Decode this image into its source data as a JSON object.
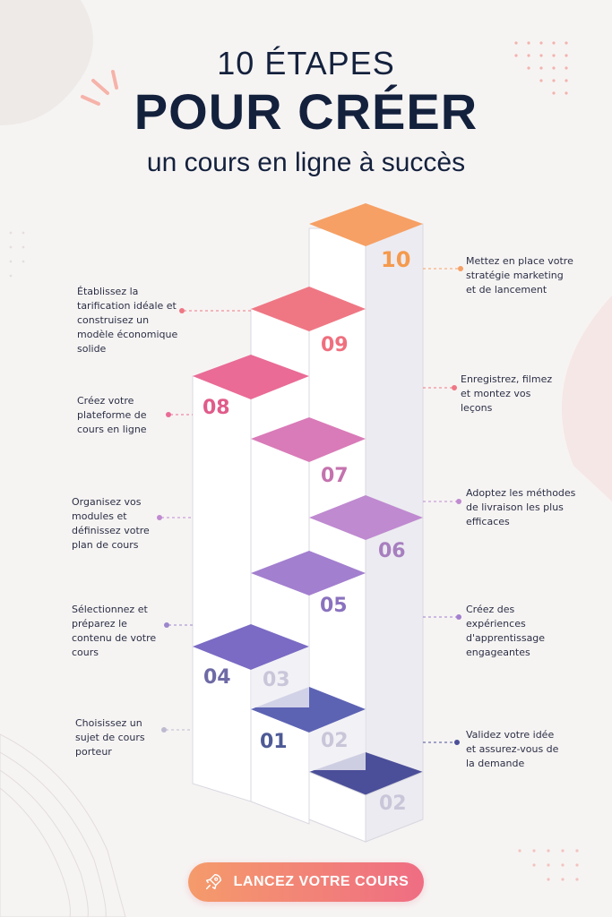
{
  "header": {
    "line1": "10 ÉTAPES",
    "line2": "POUR CRÉER",
    "line3": "un cours en ligne à succès"
  },
  "steps": [
    {
      "number": "01",
      "label": "Choisissez un sujet de cours porteur",
      "color": "#5d63b3"
    },
    {
      "number": "02",
      "label": "Validez votre idée et assurez-vous de la demande",
      "color": "#4b4f99"
    },
    {
      "number": "03",
      "label": "Créez des expériences d'apprentissage engageantes",
      "color": "#6d62b8"
    },
    {
      "number": "04",
      "label": "Sélectionnez et préparez le contenu de votre cours",
      "color": "#7b6bc4"
    },
    {
      "number": "05",
      "label": "Organisez vos modules et définissez votre plan de cours",
      "color": "#a37fcf"
    },
    {
      "number": "06",
      "label": "Adoptez les méthodes de livraison les plus efficaces",
      "color": "#bf8ad0"
    },
    {
      "number": "07",
      "label": "Enregistrez, filmez et montez vos leçons",
      "color": "#d97bb8"
    },
    {
      "number": "08",
      "label": "Créez votre plateforme de cours en ligne",
      "color": "#e96b96"
    },
    {
      "number": "09",
      "label": "Établissez la tarification idéale et construisez un modèle économique solide",
      "color": "#ef7784"
    },
    {
      "number": "10",
      "label": "Mettez en place votre stratégie marketing et de lancement",
      "color": "#f6a065"
    }
  ],
  "cta": {
    "label": "LANCEZ VOTRE COURS",
    "icon": "rocket-icon"
  }
}
